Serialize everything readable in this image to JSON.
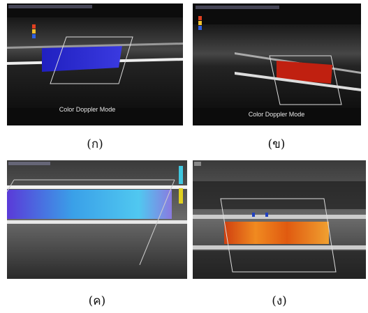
{
  "panels": [
    {
      "overlay_text": "Color Doppler Mode",
      "caption": "(ก)"
    },
    {
      "overlay_text": "Color Doppler Mode",
      "caption": "(ข)"
    },
    {
      "caption": "(ค)"
    },
    {
      "caption": "(ง)"
    }
  ]
}
